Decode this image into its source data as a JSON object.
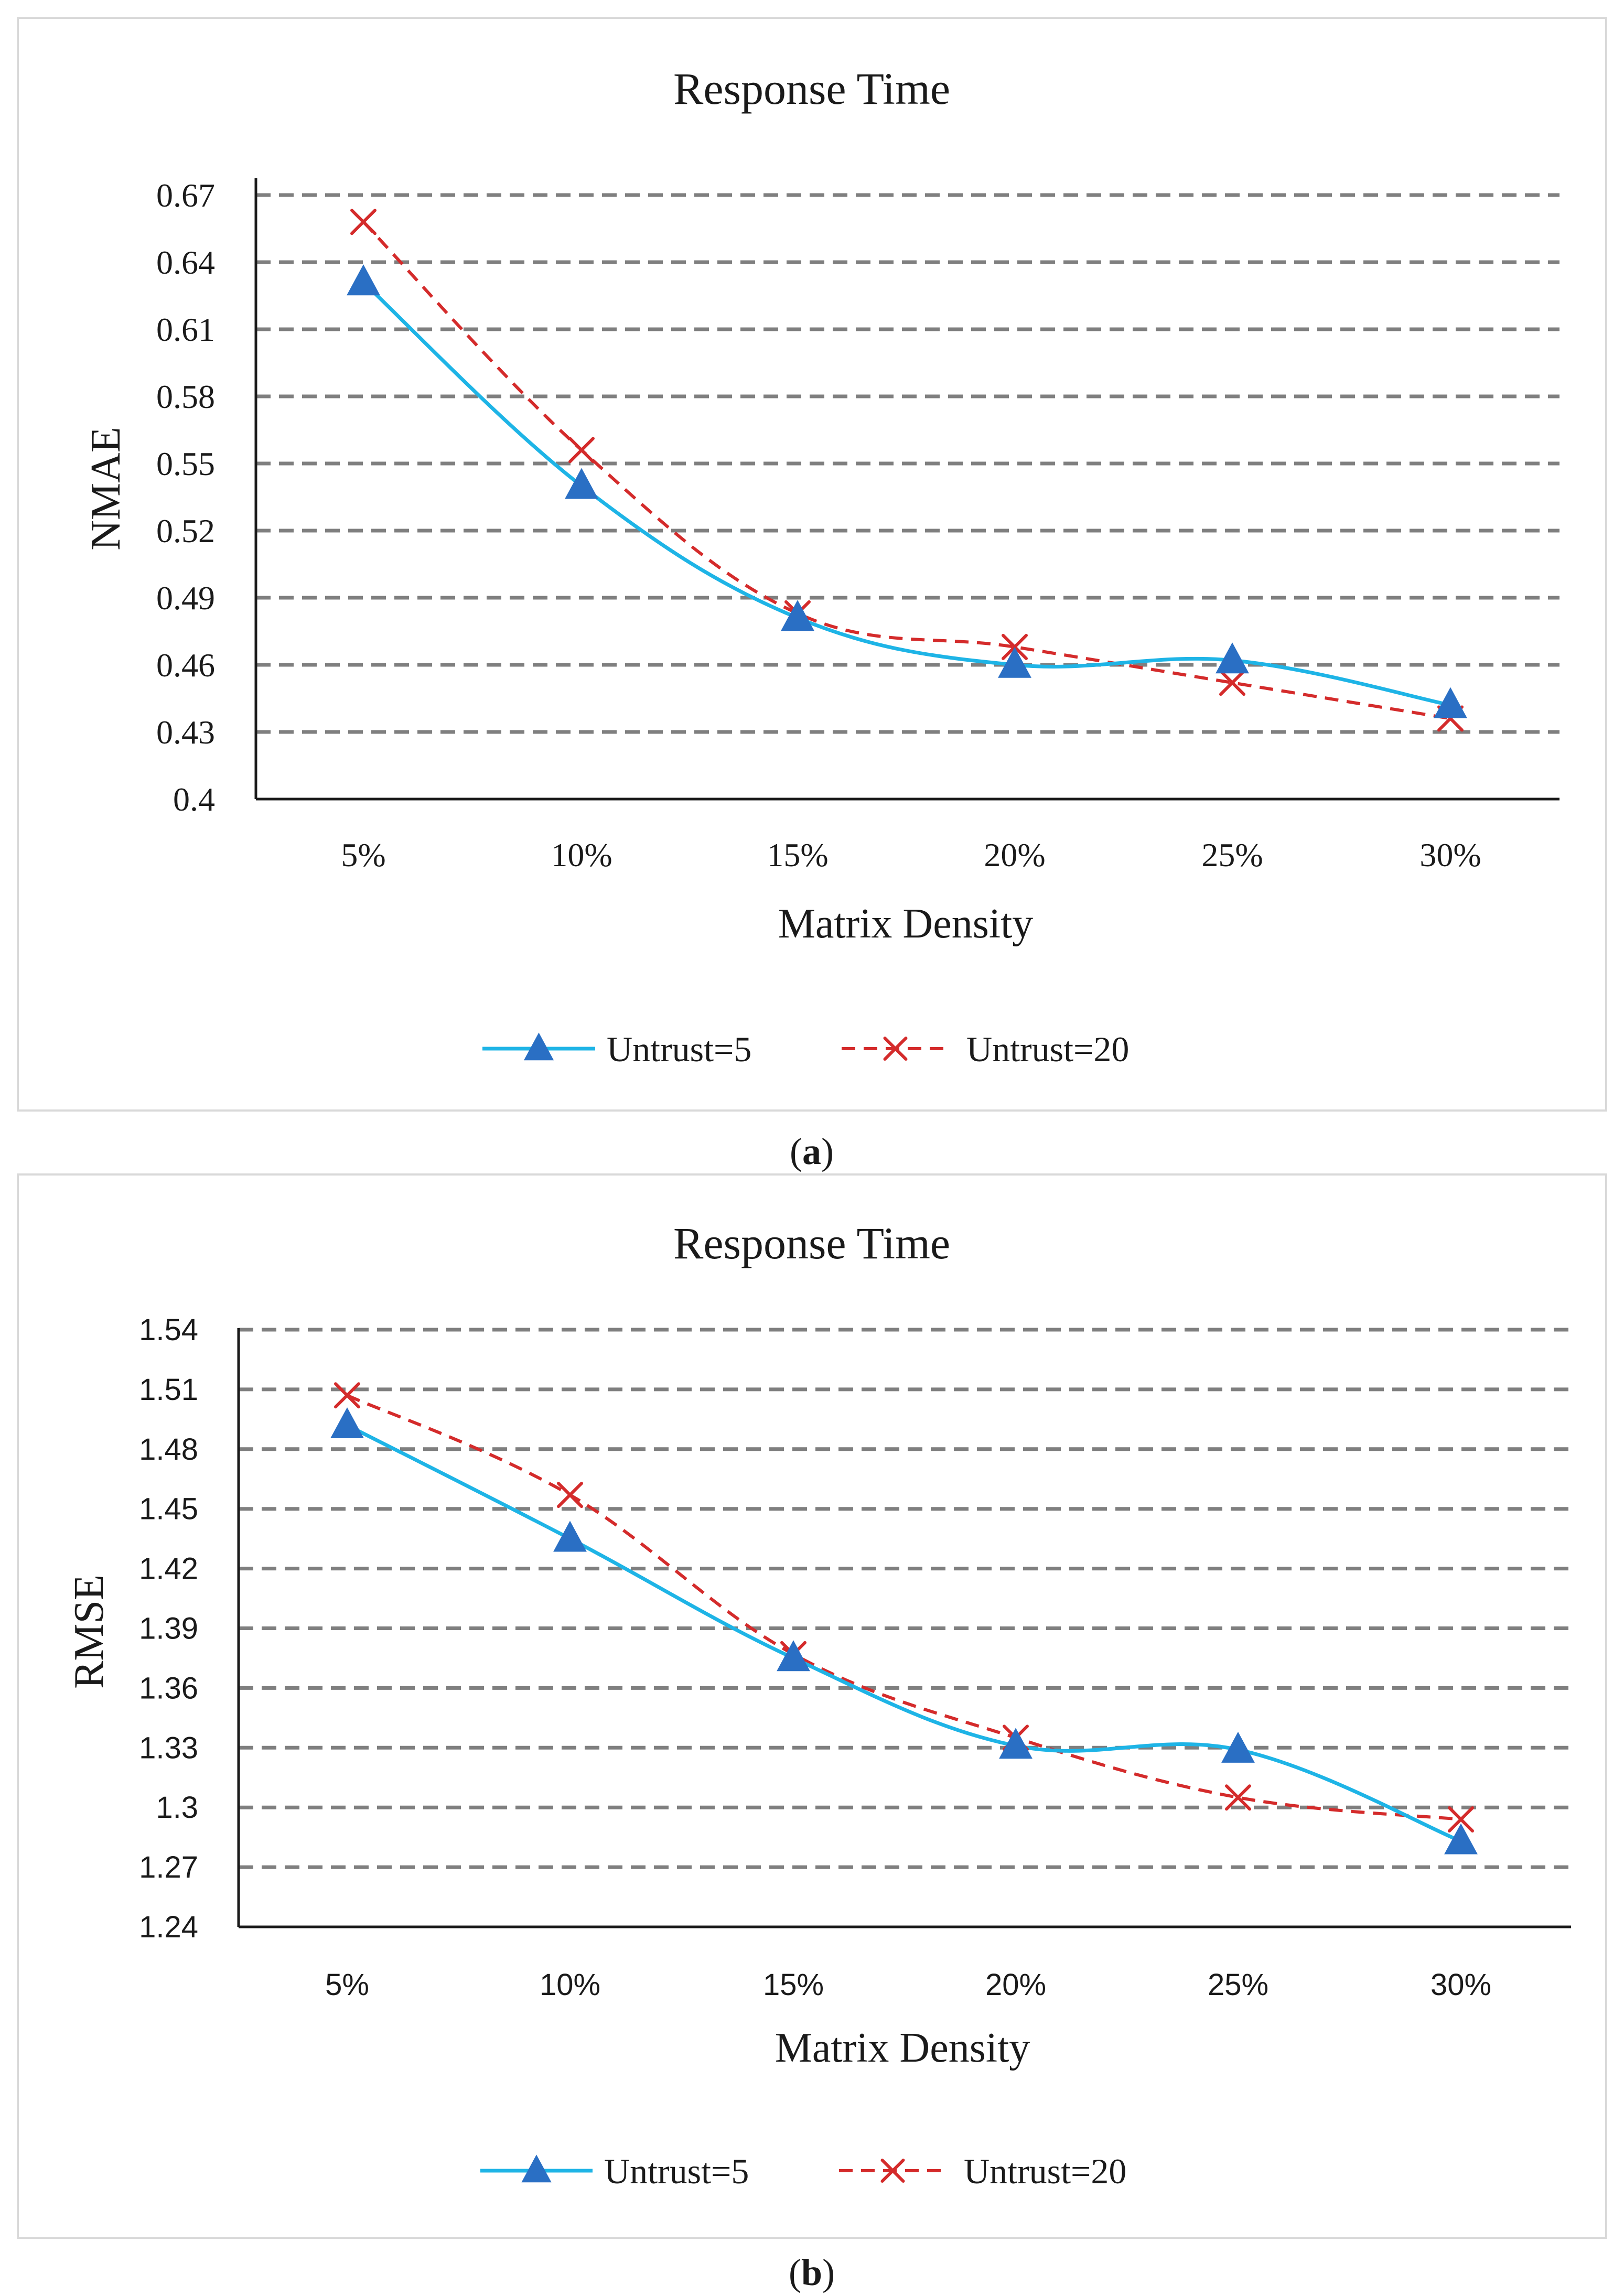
{
  "chart_data": [
    {
      "panel": "a",
      "type": "line",
      "title": "Response Time",
      "xlabel": "Matrix Density",
      "ylabel": "NMAE",
      "categories": [
        "5%",
        "10%",
        "15%",
        "20%",
        "25%",
        "30%"
      ],
      "ylim": [
        0.4,
        0.67
      ],
      "yticks": [
        0.4,
        0.43,
        0.46,
        0.49,
        0.52,
        0.55,
        0.58,
        0.61,
        0.64,
        0.67
      ],
      "ytick_labels": [
        "0.4",
        "0.43",
        "0.46",
        "0.49",
        "0.52",
        "0.55",
        "0.58",
        "0.61",
        "0.64",
        "0.67"
      ],
      "grid": true,
      "legend_position": "bottom",
      "series": [
        {
          "name": "Untrust=5",
          "color": "#1eb4e6",
          "marker": "triangle",
          "marker_color": "#2a6fc4",
          "line_style": "solid",
          "values": [
            0.631,
            0.54,
            0.481,
            0.46,
            0.462,
            0.442
          ]
        },
        {
          "name": "Untrust=20",
          "color": "#d42b2b",
          "marker": "x",
          "marker_color": "#d42b2b",
          "line_style": "dashed",
          "values": [
            0.658,
            0.556,
            0.483,
            0.468,
            0.452,
            0.436
          ]
        }
      ]
    },
    {
      "panel": "b",
      "type": "line",
      "title": "Response Time",
      "xlabel": "Matrix Density",
      "ylabel": "RMSE",
      "categories": [
        "5%",
        "10%",
        "15%",
        "20%",
        "25%",
        "30%"
      ],
      "ylim": [
        1.24,
        1.54
      ],
      "yticks": [
        1.24,
        1.27,
        1.3,
        1.33,
        1.36,
        1.39,
        1.42,
        1.45,
        1.48,
        1.51,
        1.54
      ],
      "ytick_labels": [
        "1.24",
        "1.27",
        "1.3",
        "1.33",
        "1.36",
        "1.39",
        "1.42",
        "1.45",
        "1.48",
        "1.51",
        "1.54"
      ],
      "grid": true,
      "legend_position": "bottom",
      "series": [
        {
          "name": "Untrust=5",
          "color": "#1eb4e6",
          "marker": "triangle",
          "marker_color": "#2a6fc4",
          "line_style": "solid",
          "values": [
            1.492,
            1.435,
            1.375,
            1.331,
            1.329,
            1.283
          ]
        },
        {
          "name": "Untrust=20",
          "color": "#d42b2b",
          "marker": "x",
          "marker_color": "#d42b2b",
          "line_style": "dashed",
          "values": [
            1.507,
            1.457,
            1.377,
            1.335,
            1.305,
            1.294
          ]
        }
      ]
    }
  ],
  "captions": {
    "a": {
      "open": "(",
      "letter": "a",
      "close": ")"
    },
    "b": {
      "open": "(",
      "letter": "b",
      "close": ")"
    }
  }
}
